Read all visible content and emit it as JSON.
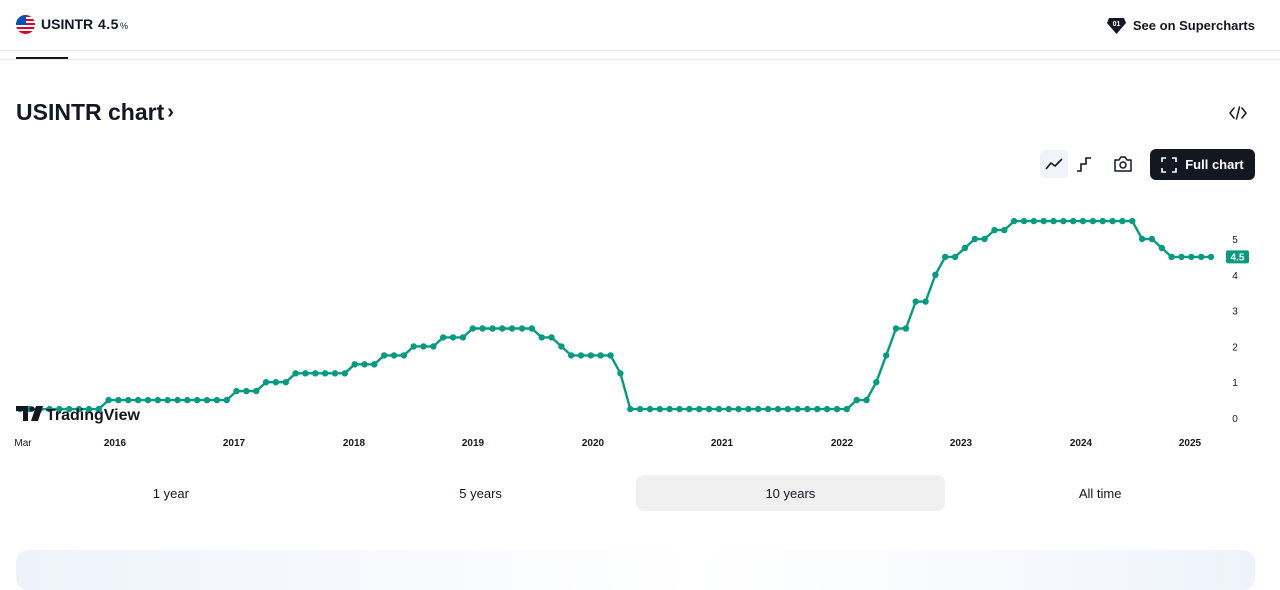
{
  "header": {
    "symbol": "USINTR",
    "price": "4.5",
    "price_unit": "%",
    "supercharts_label": "See on Supercharts"
  },
  "chart_section": {
    "title": "USINTR chart",
    "full_chart_label": "Full chart",
    "watermark": "TradingView"
  },
  "ranges": {
    "items": [
      "1 year",
      "5 years",
      "10 years",
      "All time"
    ],
    "active": "10 years"
  },
  "colors": {
    "line": "#089981",
    "badge": "#089981",
    "text": "#131722"
  },
  "chart_data": {
    "type": "line",
    "x_tick_labels": [
      "Mar",
      "2016",
      "2017",
      "2018",
      "2019",
      "2020",
      "2021",
      "2022",
      "2023",
      "2024",
      "2025"
    ],
    "y_tick_labels": [
      "0",
      "1",
      "2",
      "3",
      "4",
      "5"
    ],
    "ylim": [
      0,
      5
    ],
    "last_value_label": "4.5",
    "grid": false,
    "series": [
      {
        "values": [
          0.25,
          0.25,
          0.25,
          0.25,
          0.25,
          0.25,
          0.25,
          0.25,
          0.25,
          0.5,
          0.5,
          0.5,
          0.5,
          0.5,
          0.5,
          0.5,
          0.5,
          0.5,
          0.5,
          0.5,
          0.5,
          0.5,
          0.75,
          0.75,
          0.75,
          1,
          1,
          1,
          1.25,
          1.25,
          1.25,
          1.25,
          1.25,
          1.25,
          1.5,
          1.5,
          1.5,
          1.75,
          1.75,
          1.75,
          2,
          2,
          2,
          2.25,
          2.25,
          2.25,
          2.5,
          2.5,
          2.5,
          2.5,
          2.5,
          2.5,
          2.5,
          2.25,
          2.25,
          2,
          1.75,
          1.75,
          1.75,
          1.75,
          1.75,
          1.25,
          0.25,
          0.25,
          0.25,
          0.25,
          0.25,
          0.25,
          0.25,
          0.25,
          0.25,
          0.25,
          0.25,
          0.25,
          0.25,
          0.25,
          0.25,
          0.25,
          0.25,
          0.25,
          0.25,
          0.25,
          0.25,
          0.25,
          0.25,
          0.5,
          0.5,
          1,
          1.75,
          2.5,
          2.5,
          3.25,
          3.25,
          4,
          4.5,
          4.5,
          4.75,
          5,
          5,
          5.25,
          5.25,
          5.5,
          5.5,
          5.5,
          5.5,
          5.5,
          5.5,
          5.5,
          5.5,
          5.5,
          5.5,
          5.5,
          5.5,
          5.5,
          5,
          5,
          4.75,
          4.5,
          4.5,
          4.5,
          4.5,
          4.5
        ]
      }
    ]
  }
}
